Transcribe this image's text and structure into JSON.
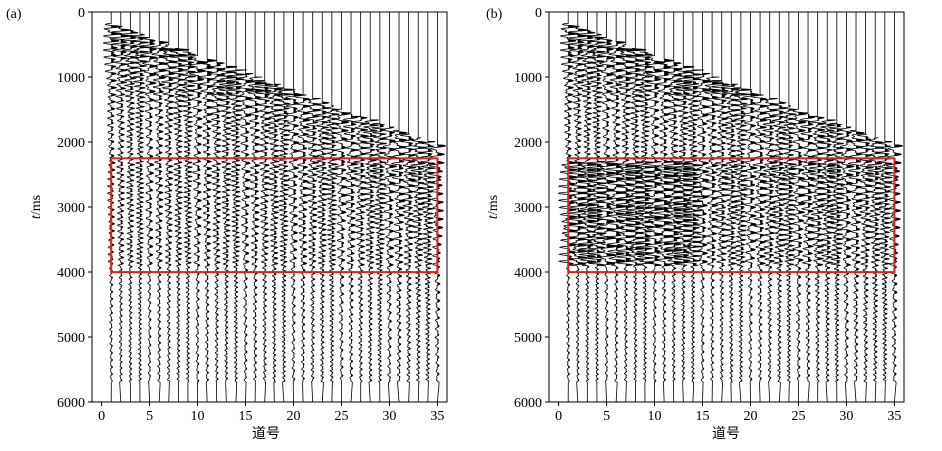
{
  "chart_data": [
    {
      "type": "seismic-wiggle",
      "panel_label": "(a)",
      "xlabel": "道号",
      "ylabel_italic": "t",
      "ylabel_unit": "/ms",
      "xlim": [
        -1,
        36
      ],
      "ylim": [
        0,
        6000
      ],
      "x_ticks": [
        "0",
        "5",
        "10",
        "15",
        "20",
        "25",
        "30",
        "35"
      ],
      "y_ticks": [
        "0",
        "1000",
        "2000",
        "3000",
        "4000",
        "5000",
        "6000"
      ],
      "trace_count": 35,
      "highlight_box": {
        "x": [
          1,
          35
        ],
        "t": [
          2250,
          4000
        ],
        "color": "#e02020"
      },
      "enhanced": false
    },
    {
      "type": "seismic-wiggle",
      "panel_label": "(b)",
      "xlabel": "道号",
      "ylabel_italic": "t",
      "ylabel_unit": "/ms",
      "xlim": [
        -1,
        36
      ],
      "ylim": [
        0,
        6000
      ],
      "x_ticks": [
        "0",
        "5",
        "10",
        "15",
        "20",
        "25",
        "30",
        "35"
      ],
      "y_ticks": [
        "0",
        "1000",
        "2000",
        "3000",
        "4000",
        "5000",
        "6000"
      ],
      "trace_count": 35,
      "highlight_box": {
        "x": [
          1,
          35
        ],
        "t": [
          2250,
          4000
        ],
        "color": "#e02020"
      },
      "enhanced": true
    }
  ]
}
